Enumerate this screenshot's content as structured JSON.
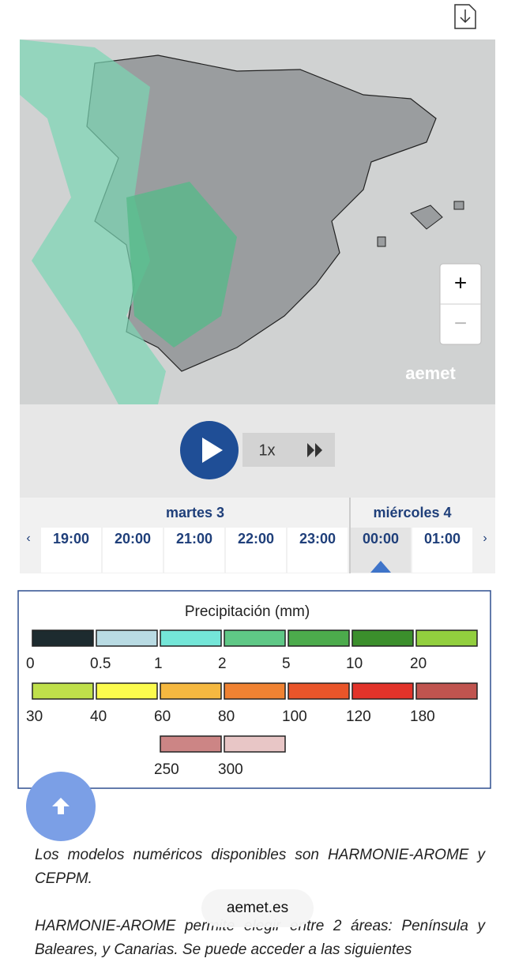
{
  "map": {
    "brand": "aemet",
    "zoom_in": "+",
    "zoom_out": "−"
  },
  "player": {
    "speed": "1x"
  },
  "timeline": {
    "days": [
      {
        "label": "martes 3",
        "span": 5
      },
      {
        "label": "miércoles 4",
        "span": 2
      }
    ],
    "times": [
      "19:00",
      "20:00",
      "21:00",
      "22:00",
      "23:00",
      "00:00",
      "01:00"
    ],
    "selected": 5
  },
  "legend": {
    "title": "Precipitación (mm)",
    "rows": [
      [
        {
          "color": "#1d2b2f",
          "label": "0"
        },
        {
          "color": "#b9dbe3",
          "label": "0.5"
        },
        {
          "color": "#74e6d8",
          "label": "1"
        },
        {
          "color": "#5fc886",
          "label": "2"
        },
        {
          "color": "#4cab4c",
          "label": "5"
        },
        {
          "color": "#3b8f2c",
          "label": "10"
        },
        {
          "color": "#92cf3e",
          "label": "20"
        }
      ],
      [
        {
          "color": "#bfe04a",
          "label": "30"
        },
        {
          "color": "#fbfb4d",
          "label": "40"
        },
        {
          "color": "#f5b840",
          "label": "60"
        },
        {
          "color": "#f08232",
          "label": "80"
        },
        {
          "color": "#e9552a",
          "label": "100"
        },
        {
          "color": "#e2332a",
          "label": "120"
        },
        {
          "color": "#c0544f",
          "label": "180"
        }
      ],
      [
        {
          "color": "#cc8585",
          "label": "250"
        },
        {
          "color": "#e8c6c6",
          "label": "300"
        }
      ]
    ]
  },
  "text": {
    "paragraphs": [
      "Los modelos numéricos disponibles son HARMONIE-AROME y CEPPM.",
      "HARMONIE-AROME permite elegir entre 2 áreas: Península y Baleares, y Canarias. Se puede acceder a las siguientes"
    ]
  },
  "browser": {
    "address": "aemet.es"
  }
}
